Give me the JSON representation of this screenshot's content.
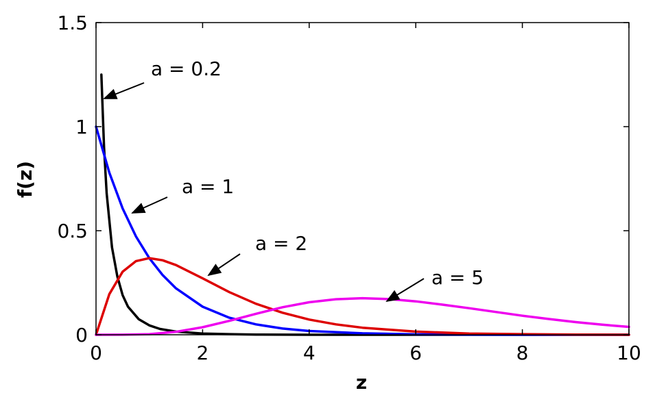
{
  "chart_data": {
    "type": "line",
    "xlabel": "z",
    "ylabel": "f(z)",
    "xlim": [
      0,
      10
    ],
    "ylim": [
      0,
      1.5
    ],
    "grid": false,
    "xticks": [
      "0",
      "2",
      "4",
      "6",
      "8",
      "10"
    ],
    "yticks": [
      "0",
      "0.5",
      "1",
      "1.5"
    ],
    "x_tick_values": [
      0,
      2,
      4,
      6,
      8,
      10
    ],
    "y_tick_values": [
      0,
      0.5,
      1,
      1.5
    ],
    "series": [
      {
        "color": "#000000",
        "x": [
          0.1,
          0.15,
          0.2,
          0.3,
          0.4,
          0.5,
          0.6,
          0.8,
          1.0,
          1.2,
          1.5,
          2.0,
          2.5,
          3.0,
          4.0,
          5.0,
          6.0,
          8.0,
          10.0
        ],
        "y": [
          1.25,
          0.9,
          0.68,
          0.42,
          0.28,
          0.19,
          0.135,
          0.075,
          0.045,
          0.028,
          0.015,
          0.006,
          0.003,
          0.001,
          0.0,
          0.0,
          0.0,
          0.0,
          0.0
        ]
      },
      {
        "color": "#0000ff",
        "x": [
          0.0,
          0.25,
          0.5,
          0.75,
          1.0,
          1.25,
          1.5,
          2.0,
          2.5,
          3.0,
          3.5,
          4.0,
          5.0,
          6.0,
          7.0,
          8.0,
          10.0
        ],
        "y": [
          1.0,
          0.779,
          0.607,
          0.472,
          0.368,
          0.287,
          0.223,
          0.135,
          0.082,
          0.05,
          0.03,
          0.018,
          0.007,
          0.002,
          0.001,
          0.0,
          0.0
        ]
      },
      {
        "color": "#dd0000",
        "x": [
          0.0,
          0.25,
          0.5,
          0.75,
          1.0,
          1.25,
          1.5,
          2.0,
          2.5,
          3.0,
          3.5,
          4.0,
          4.5,
          5.0,
          6.0,
          7.0,
          8.0,
          9.0,
          10.0
        ],
        "y": [
          0.0,
          0.195,
          0.303,
          0.354,
          0.368,
          0.358,
          0.335,
          0.271,
          0.205,
          0.149,
          0.106,
          0.073,
          0.05,
          0.034,
          0.015,
          0.006,
          0.003,
          0.001,
          0.0
        ],
        "annotation": "a = 2"
      },
      {
        "color": "#ee00ee",
        "x": [
          0.0,
          0.5,
          1.0,
          1.5,
          2.0,
          2.5,
          3.0,
          3.5,
          4.0,
          4.5,
          5.0,
          5.5,
          6.0,
          6.5,
          7.0,
          7.5,
          8.0,
          8.5,
          9.0,
          9.5,
          10.0
        ],
        "y": [
          0.0,
          0.0002,
          0.0031,
          0.0141,
          0.0361,
          0.0668,
          0.1008,
          0.1322,
          0.1563,
          0.1708,
          0.1755,
          0.1714,
          0.1606,
          0.1448,
          0.1277,
          0.1094,
          0.0916,
          0.0756,
          0.0607,
          0.0483,
          0.0378
        ]
      }
    ],
    "annotations": [
      {
        "text": "a = 0.2"
      },
      {
        "text": "a = 1"
      },
      {
        "text": "a = 2"
      },
      {
        "text": "a = 5"
      }
    ]
  }
}
